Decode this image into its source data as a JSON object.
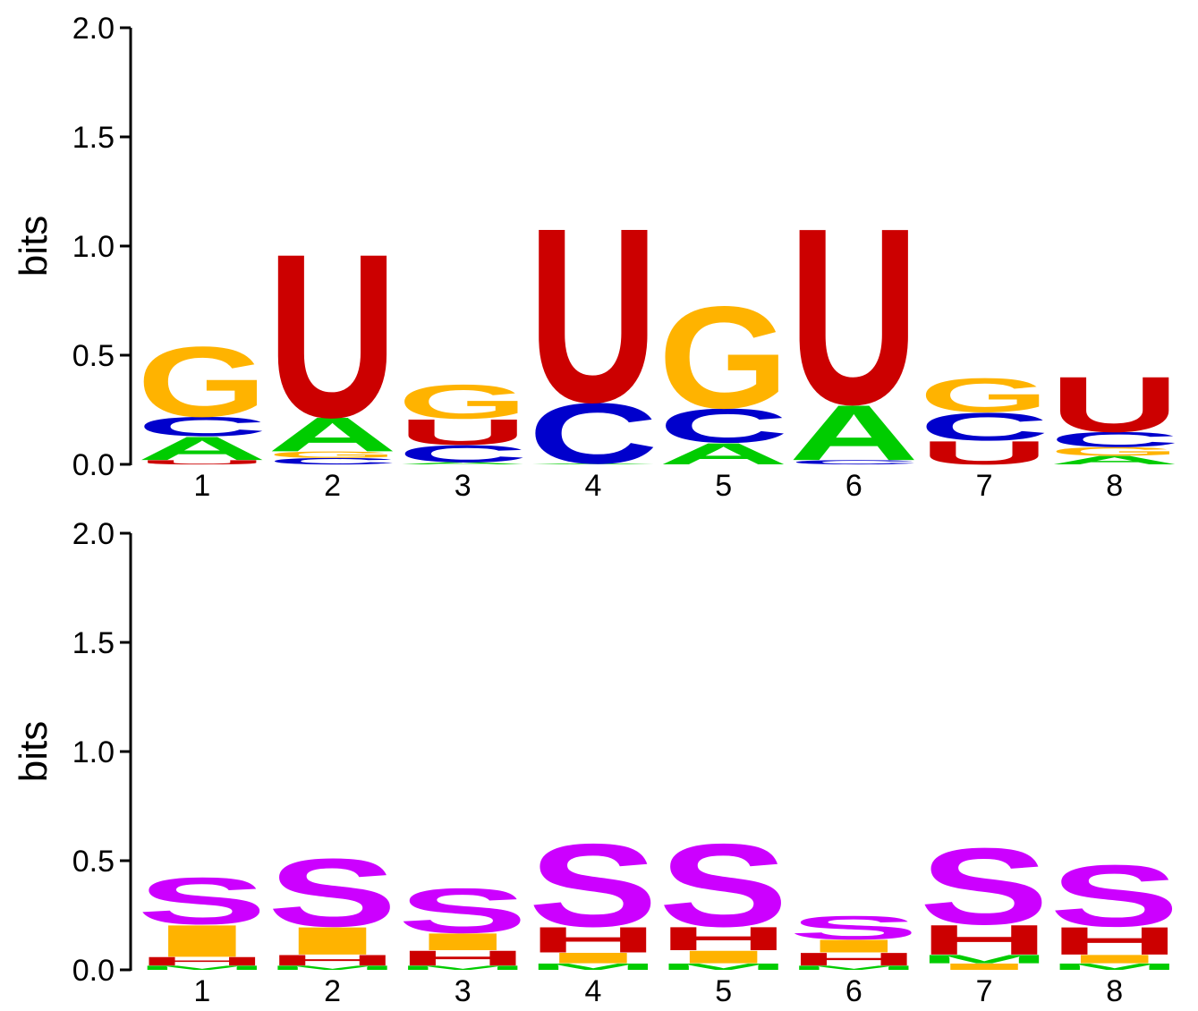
{
  "colors": {
    "A": "#00cc00",
    "C": "#0000cc",
    "G": "#ffb300",
    "U": "#cc0000",
    "H": "#cc0000",
    "I": "#ffb300",
    "S": "#cc00ff",
    "M": "#00cc00"
  },
  "chart_data": [
    {
      "type": "sequence-logo",
      "ylabel": "bits",
      "ylim": [
        0,
        2
      ],
      "yticks": [
        "0.0",
        "0.5",
        "1.0",
        "1.5",
        "2.0"
      ],
      "positions": [
        "1",
        "2",
        "3",
        "4",
        "5",
        "6",
        "7",
        "8"
      ],
      "stacks": [
        [
          {
            "letter": "U",
            "bits": 0.02
          },
          {
            "letter": "A",
            "bits": 0.11
          },
          {
            "letter": "C",
            "bits": 0.09
          },
          {
            "letter": "G",
            "bits": 0.33
          }
        ],
        [
          {
            "letter": "C",
            "bits": 0.03
          },
          {
            "letter": "G",
            "bits": 0.03
          },
          {
            "letter": "A",
            "bits": 0.16
          },
          {
            "letter": "U",
            "bits": 0.77
          }
        ],
        [
          {
            "letter": "A",
            "bits": 0.01
          },
          {
            "letter": "C",
            "bits": 0.08
          },
          {
            "letter": "U",
            "bits": 0.12
          },
          {
            "letter": "G",
            "bits": 0.16
          }
        ],
        [
          {
            "letter": "A",
            "bits": 0.005
          },
          {
            "letter": "C",
            "bits": 0.285
          },
          {
            "letter": "U",
            "bits": 0.82
          }
        ],
        [
          {
            "letter": "A",
            "bits": 0.1
          },
          {
            "letter": "C",
            "bits": 0.16
          },
          {
            "letter": "G",
            "bits": 0.48
          }
        ],
        [
          {
            "letter": "C",
            "bits": 0.02
          },
          {
            "letter": "A",
            "bits": 0.26
          },
          {
            "letter": "U",
            "bits": 0.83
          }
        ],
        [
          {
            "letter": "U",
            "bits": 0.11
          },
          {
            "letter": "C",
            "bits": 0.13
          },
          {
            "letter": "G",
            "bits": 0.16
          }
        ],
        [
          {
            "letter": "A",
            "bits": 0.04
          },
          {
            "letter": "G",
            "bits": 0.04
          },
          {
            "letter": "C",
            "bits": 0.07
          },
          {
            "letter": "U",
            "bits": 0.26
          }
        ]
      ]
    },
    {
      "type": "sequence-logo",
      "ylabel": "bits",
      "ylim": [
        0,
        2
      ],
      "yticks": [
        "0.0",
        "0.5",
        "1.0",
        "1.5",
        "2.0"
      ],
      "positions": [
        "1",
        "2",
        "3",
        "4",
        "5",
        "6",
        "7",
        "8"
      ],
      "stacks": [
        [
          {
            "letter": "M",
            "bits": 0.02
          },
          {
            "letter": "H",
            "bits": 0.04
          },
          {
            "letter": "I",
            "bits": 0.15
          },
          {
            "letter": "S",
            "bits": 0.22
          }
        ],
        [
          {
            "letter": "M",
            "bits": 0.02
          },
          {
            "letter": "H",
            "bits": 0.05
          },
          {
            "letter": "I",
            "bits": 0.13
          },
          {
            "letter": "S",
            "bits": 0.32
          }
        ],
        [
          {
            "letter": "M",
            "bits": 0.02
          },
          {
            "letter": "H",
            "bits": 0.07
          },
          {
            "letter": "I",
            "bits": 0.08
          },
          {
            "letter": "S",
            "bits": 0.21
          }
        ],
        [
          {
            "letter": "M",
            "bits": 0.03
          },
          {
            "letter": "I",
            "bits": 0.05
          },
          {
            "letter": "H",
            "bits": 0.12
          },
          {
            "letter": "S",
            "bits": 0.39
          }
        ],
        [
          {
            "letter": "M",
            "bits": 0.03
          },
          {
            "letter": "I",
            "bits": 0.06
          },
          {
            "letter": "H",
            "bits": 0.11
          },
          {
            "letter": "S",
            "bits": 0.39
          }
        ],
        [
          {
            "letter": "M",
            "bits": 0.02
          },
          {
            "letter": "H",
            "bits": 0.06
          },
          {
            "letter": "I",
            "bits": 0.06
          },
          {
            "letter": "S",
            "bits": 0.11
          }
        ],
        [
          {
            "letter": "I",
            "bits": 0.03
          },
          {
            "letter": "M",
            "bits": 0.04
          },
          {
            "letter": "H",
            "bits": 0.14
          },
          {
            "letter": "S",
            "bits": 0.36
          }
        ],
        [
          {
            "letter": "M",
            "bits": 0.03
          },
          {
            "letter": "I",
            "bits": 0.04
          },
          {
            "letter": "H",
            "bits": 0.13
          },
          {
            "letter": "S",
            "bits": 0.29
          }
        ]
      ]
    }
  ]
}
